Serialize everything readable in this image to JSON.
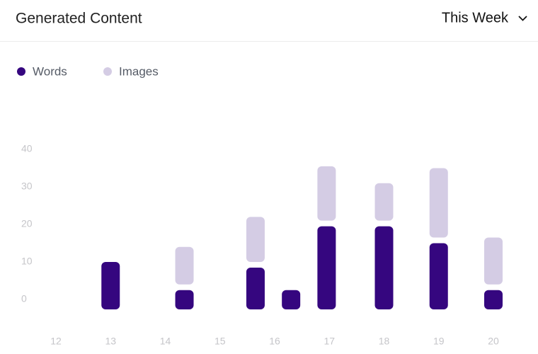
{
  "header": {
    "title": "Generated Content",
    "period": "This Week"
  },
  "chart_data": {
    "type": "bar",
    "x": [
      13,
      14.35,
      15.65,
      16.3,
      16.95,
      18,
      19,
      20
    ],
    "series": [
      {
        "name": "Words",
        "color": "#35067f",
        "values": [
          10,
          2.5,
          8.5,
          2.5,
          19.5,
          19.5,
          15,
          2.5
        ]
      },
      {
        "name": "Images",
        "color": "#d4cce4",
        "values": [
          0,
          11.5,
          13.5,
          0,
          16,
          11.5,
          20,
          14
        ]
      }
    ],
    "xlim": [
      12,
      20
    ],
    "xticks": [
      12,
      13,
      14,
      15,
      16,
      17,
      18,
      19,
      20
    ],
    "ylim": [
      0,
      40
    ],
    "yticks": [
      0,
      10,
      20,
      30,
      40
    ],
    "grid": false
  }
}
